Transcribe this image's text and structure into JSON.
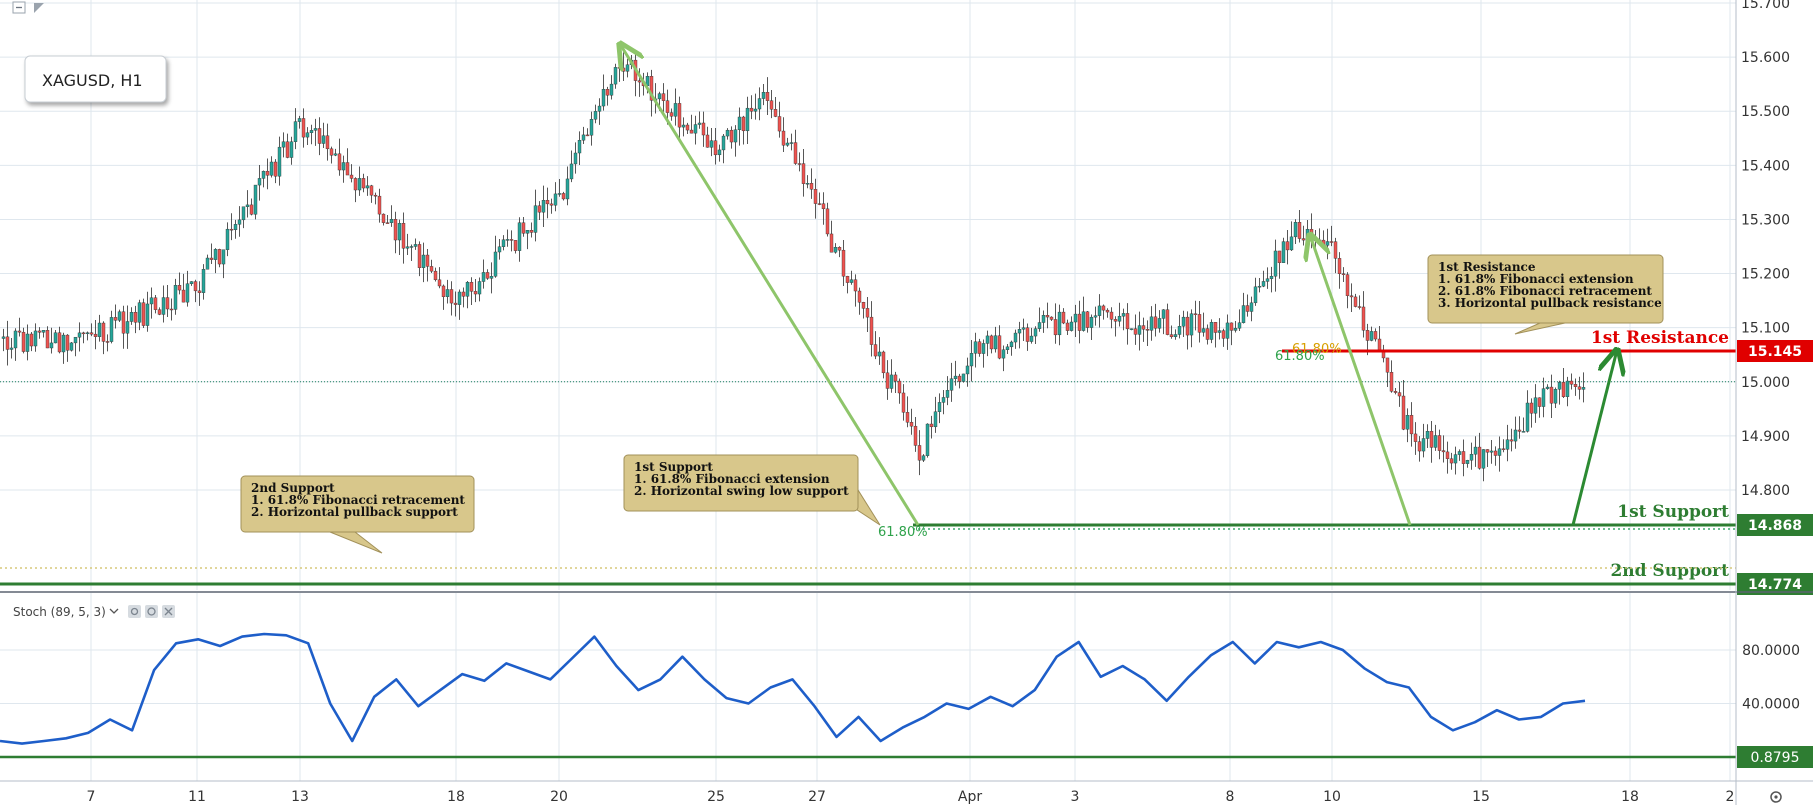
{
  "symbol_label": "XAGUSD, H1",
  "stoch_label": "Stoch (89, 5, 3)",
  "colors": {
    "background": "#ffffff",
    "grid": "#dfe7ee",
    "up": "#26a69a",
    "down": "#ef5350",
    "wick": "#2d2d2d",
    "arrow_light": "#8ec56a",
    "arrow_dark": "#2c8a32",
    "support": "#2e7d32",
    "resistance": "#e00000",
    "stoch_line": "#1e5ec9",
    "note_fill": "#d8c78b",
    "note_border": "#a2915a",
    "fib_text": "#2fa24b"
  },
  "chart_data": [
    {
      "type": "candlestick",
      "title": "XAGUSD, H1",
      "timeframe": "H1",
      "ylim": [
        14.78,
        15.7
      ],
      "y_ticks": [
        "14.800",
        "14.900",
        "15.000",
        "15.100",
        "15.200",
        "15.300",
        "15.400",
        "15.500",
        "15.600",
        "15.700"
      ],
      "x_tick_labels": [
        "7",
        "11",
        "13",
        "18",
        "20",
        "25",
        "27",
        "Apr",
        "3",
        "8",
        "10",
        "15",
        "18",
        "2"
      ],
      "approx_price_path": [
        {
          "x": "7",
          "y": 15.08
        },
        {
          "x": "11",
          "y": 15.18
        },
        {
          "x": "13",
          "y": 15.48
        },
        {
          "x": "18",
          "y": 15.15
        },
        {
          "x": "20",
          "y": 15.35
        },
        {
          "x": "22",
          "y": 15.6
        },
        {
          "x": "25",
          "y": 15.42
        },
        {
          "x": "26",
          "y": 15.52
        },
        {
          "x": "27",
          "y": 15.32
        },
        {
          "x": "29",
          "y": 14.87
        },
        {
          "x": "Apr",
          "y": 15.05
        },
        {
          "x": "3",
          "y": 15.12
        },
        {
          "x": "8",
          "y": 15.1
        },
        {
          "x": "9",
          "y": 15.28
        },
        {
          "x": "10",
          "y": 15.24
        },
        {
          "x": "12",
          "y": 14.9
        },
        {
          "x": "15",
          "y": 14.85
        },
        {
          "x": "16",
          "y": 14.98
        }
      ],
      "levels": [
        {
          "label": "1st Resistance",
          "value": "15.145",
          "color": "#e00000"
        },
        {
          "label": "1st Support",
          "value": "14.868",
          "color": "#2e7d32"
        },
        {
          "label": "2nd Support",
          "value": "14.774",
          "color": "#2e7d32"
        }
      ],
      "fib_labels": [
        "61.80%",
        "61.80%",
        "61.80%"
      ],
      "annotations": [
        {
          "lines": [
            "2nd Support",
            "1. 61.8% Fibonacci retracement",
            "2. Horizontal pullback support"
          ]
        },
        {
          "lines": [
            "1st Support",
            "1. 61.8% Fibonacci extension",
            "2.  Horizontal swing low support"
          ]
        },
        {
          "lines": [
            "1st Resistance",
            "1. 61.8% Fibonacci extension",
            "2. 61.8% Fibonacci retracement",
            "3. Horizontal pullback resistance"
          ]
        }
      ]
    },
    {
      "type": "line",
      "title": "Stoch (89, 5, 3)",
      "ylim": [
        0,
        100
      ],
      "y_ticks": [
        "80.0000",
        "40.0000"
      ],
      "reference_line": {
        "value": "0.8795",
        "color": "#2e7d32"
      },
      "approx_values": [
        12,
        10,
        12,
        14,
        18,
        28,
        20,
        65,
        85,
        88,
        83,
        90,
        92,
        91,
        85,
        40,
        12,
        45,
        58,
        38,
        50,
        62,
        57,
        70,
        64,
        58,
        74,
        90,
        68,
        50,
        58,
        75,
        58,
        44,
        40,
        52,
        58,
        38,
        15,
        30,
        12,
        22,
        30,
        40,
        36,
        45,
        38,
        50,
        75,
        86,
        60,
        68,
        58,
        42,
        60,
        76,
        86,
        70,
        86,
        82,
        86,
        80,
        66,
        56,
        52,
        30,
        20,
        26,
        35,
        28,
        30,
        40,
        42
      ]
    }
  ]
}
